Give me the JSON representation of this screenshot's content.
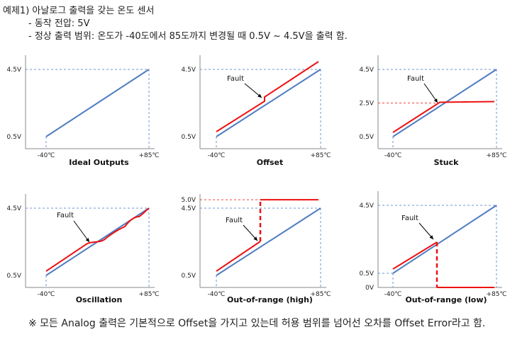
{
  "header": {
    "line1": "예제1) 아날로그 출력을 갖는 온도 센서",
    "line2": "- 동작 전압: 5V",
    "line3": "- 정상 출력 범위: 온도가 -40도에서 85도까지 변경될 때 0.5V ~ 4.5V을 출력 함."
  },
  "footer": "※ 모든 Analog 출력은 기본적으로 Offset을 가지고 있는데 허용 범위를 넘어선 오차를 Offset Error라고 함.",
  "colors": {
    "ideal": "#4f7cc0",
    "fault": "#ee1111",
    "guide": "#6f95d0",
    "fault_guide": "#ee4444"
  },
  "x_ticks": [
    "-40℃",
    "+85℃"
  ],
  "fault_label": "Fault",
  "charts": [
    {
      "title": "Ideal Outputs",
      "y_ticks": [
        "4.5V",
        "0.5V"
      ],
      "fault": false
    },
    {
      "title": "Offset",
      "y_ticks": [
        "4.5V",
        "0.5V"
      ],
      "fault": true
    },
    {
      "title": "Stuck",
      "y_ticks": [
        "4.5V",
        "2.5V",
        "0.5V"
      ],
      "fault": true
    },
    {
      "title": "Oscillation",
      "y_ticks": [
        "4.5V",
        "0.5V"
      ],
      "fault": true
    },
    {
      "title": "Out-of-range (high)",
      "y_ticks": [
        "5.0V",
        "4.5V",
        "0.5V"
      ],
      "fault": true
    },
    {
      "title": "Out-of-range (low)",
      "y_ticks": [
        "4.5V",
        "0.5V",
        "0V"
      ],
      "fault": true
    }
  ]
}
